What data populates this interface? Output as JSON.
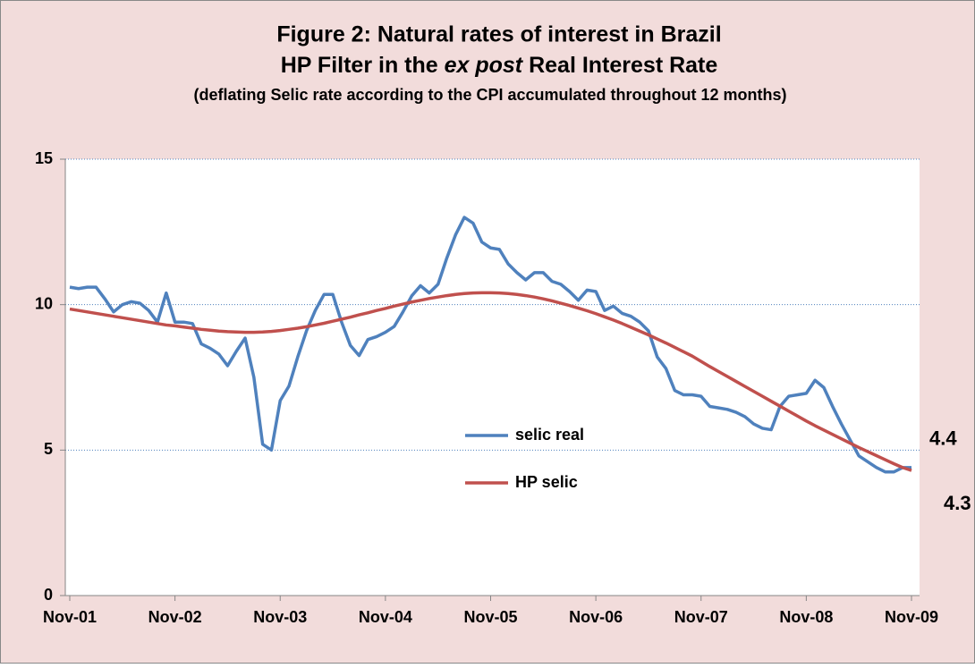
{
  "chart_data": {
    "type": "line",
    "title": "Figure 2: Natural rates of interest in Brazil",
    "title_line2": [
      "HP Filter in the ",
      "ex post",
      " Real Interest Rate"
    ],
    "subtitle": "(deflating Selic rate according to the CPI accumulated throughout 12 months)",
    "categories": [
      "Nov-01",
      null,
      null,
      null,
      null,
      null,
      null,
      null,
      null,
      null,
      null,
      null,
      "Nov-02",
      null,
      null,
      null,
      null,
      null,
      null,
      null,
      null,
      null,
      null,
      null,
      "Nov-03",
      null,
      null,
      null,
      null,
      null,
      null,
      null,
      null,
      null,
      null,
      null,
      "Nov-04",
      null,
      null,
      null,
      null,
      null,
      null,
      null,
      null,
      null,
      null,
      null,
      "Nov-05",
      null,
      null,
      null,
      null,
      null,
      null,
      null,
      null,
      null,
      null,
      null,
      "Nov-06",
      null,
      null,
      null,
      null,
      null,
      null,
      null,
      null,
      null,
      null,
      null,
      "Nov-07",
      null,
      null,
      null,
      null,
      null,
      null,
      null,
      null,
      null,
      null,
      null,
      "Nov-08",
      null,
      null,
      null,
      null,
      null,
      null,
      null,
      null,
      null,
      null,
      null,
      "Nov-09"
    ],
    "series": [
      {
        "name": "selic real",
        "color": "#4f81bd",
        "values": [
          10.6,
          10.55,
          10.6,
          10.6,
          10.2,
          9.75,
          10.0,
          10.1,
          10.05,
          9.8,
          9.4,
          10.4,
          9.4,
          9.4,
          9.35,
          8.65,
          8.5,
          8.3,
          7.9,
          8.4,
          8.85,
          7.5,
          5.2,
          5.0,
          6.7,
          7.2,
          8.2,
          9.1,
          9.8,
          10.35,
          10.35,
          9.4,
          8.6,
          8.25,
          8.8,
          8.9,
          9.05,
          9.25,
          9.75,
          10.3,
          10.65,
          10.4,
          10.7,
          11.6,
          12.4,
          13.0,
          12.8,
          12.15,
          11.95,
          11.9,
          11.4,
          11.1,
          10.85,
          11.1,
          11.1,
          10.8,
          10.7,
          10.45,
          10.15,
          10.5,
          10.45,
          9.8,
          9.95,
          9.7,
          9.6,
          9.4,
          9.1,
          8.2,
          7.8,
          7.05,
          6.9,
          6.9,
          6.85,
          6.5,
          6.45,
          6.4,
          6.3,
          6.15,
          5.9,
          5.75,
          5.7,
          6.5,
          6.85,
          6.9,
          6.95,
          7.4,
          7.15,
          6.5,
          5.9,
          5.35,
          4.8,
          4.6,
          4.4,
          4.25,
          4.25,
          4.4,
          4.4
        ]
      },
      {
        "name": "HP selic",
        "color": "#c0504d",
        "values": [
          9.85,
          9.8,
          9.75,
          9.7,
          9.65,
          9.6,
          9.55,
          9.5,
          9.45,
          9.4,
          9.35,
          9.3,
          9.27,
          9.23,
          9.19,
          9.15,
          9.12,
          9.09,
          9.07,
          9.06,
          9.05,
          9.05,
          9.06,
          9.08,
          9.11,
          9.15,
          9.19,
          9.24,
          9.3,
          9.36,
          9.43,
          9.5,
          9.57,
          9.65,
          9.72,
          9.8,
          9.87,
          9.95,
          10.02,
          10.09,
          10.15,
          10.21,
          10.26,
          10.31,
          10.35,
          10.38,
          10.4,
          10.41,
          10.41,
          10.4,
          10.38,
          10.35,
          10.31,
          10.26,
          10.2,
          10.13,
          10.05,
          9.97,
          9.88,
          9.79,
          9.69,
          9.58,
          9.47,
          9.35,
          9.22,
          9.09,
          8.96,
          8.82,
          8.68,
          8.53,
          8.38,
          8.23,
          8.05,
          7.87,
          7.7,
          7.53,
          7.36,
          7.19,
          7.02,
          6.85,
          6.68,
          6.51,
          6.34,
          6.17,
          6.0,
          5.84,
          5.69,
          5.54,
          5.39,
          5.24,
          5.09,
          4.95,
          4.81,
          4.67,
          4.53,
          4.4,
          4.3
        ]
      }
    ],
    "annotations": [
      {
        "text": "4.4",
        "color": "#3c3ca6"
      },
      {
        "text": "4.3",
        "color": "#ff0000"
      }
    ],
    "ylim": [
      0,
      15
    ],
    "yticks": [
      0,
      5,
      10,
      15
    ],
    "grid": true
  }
}
